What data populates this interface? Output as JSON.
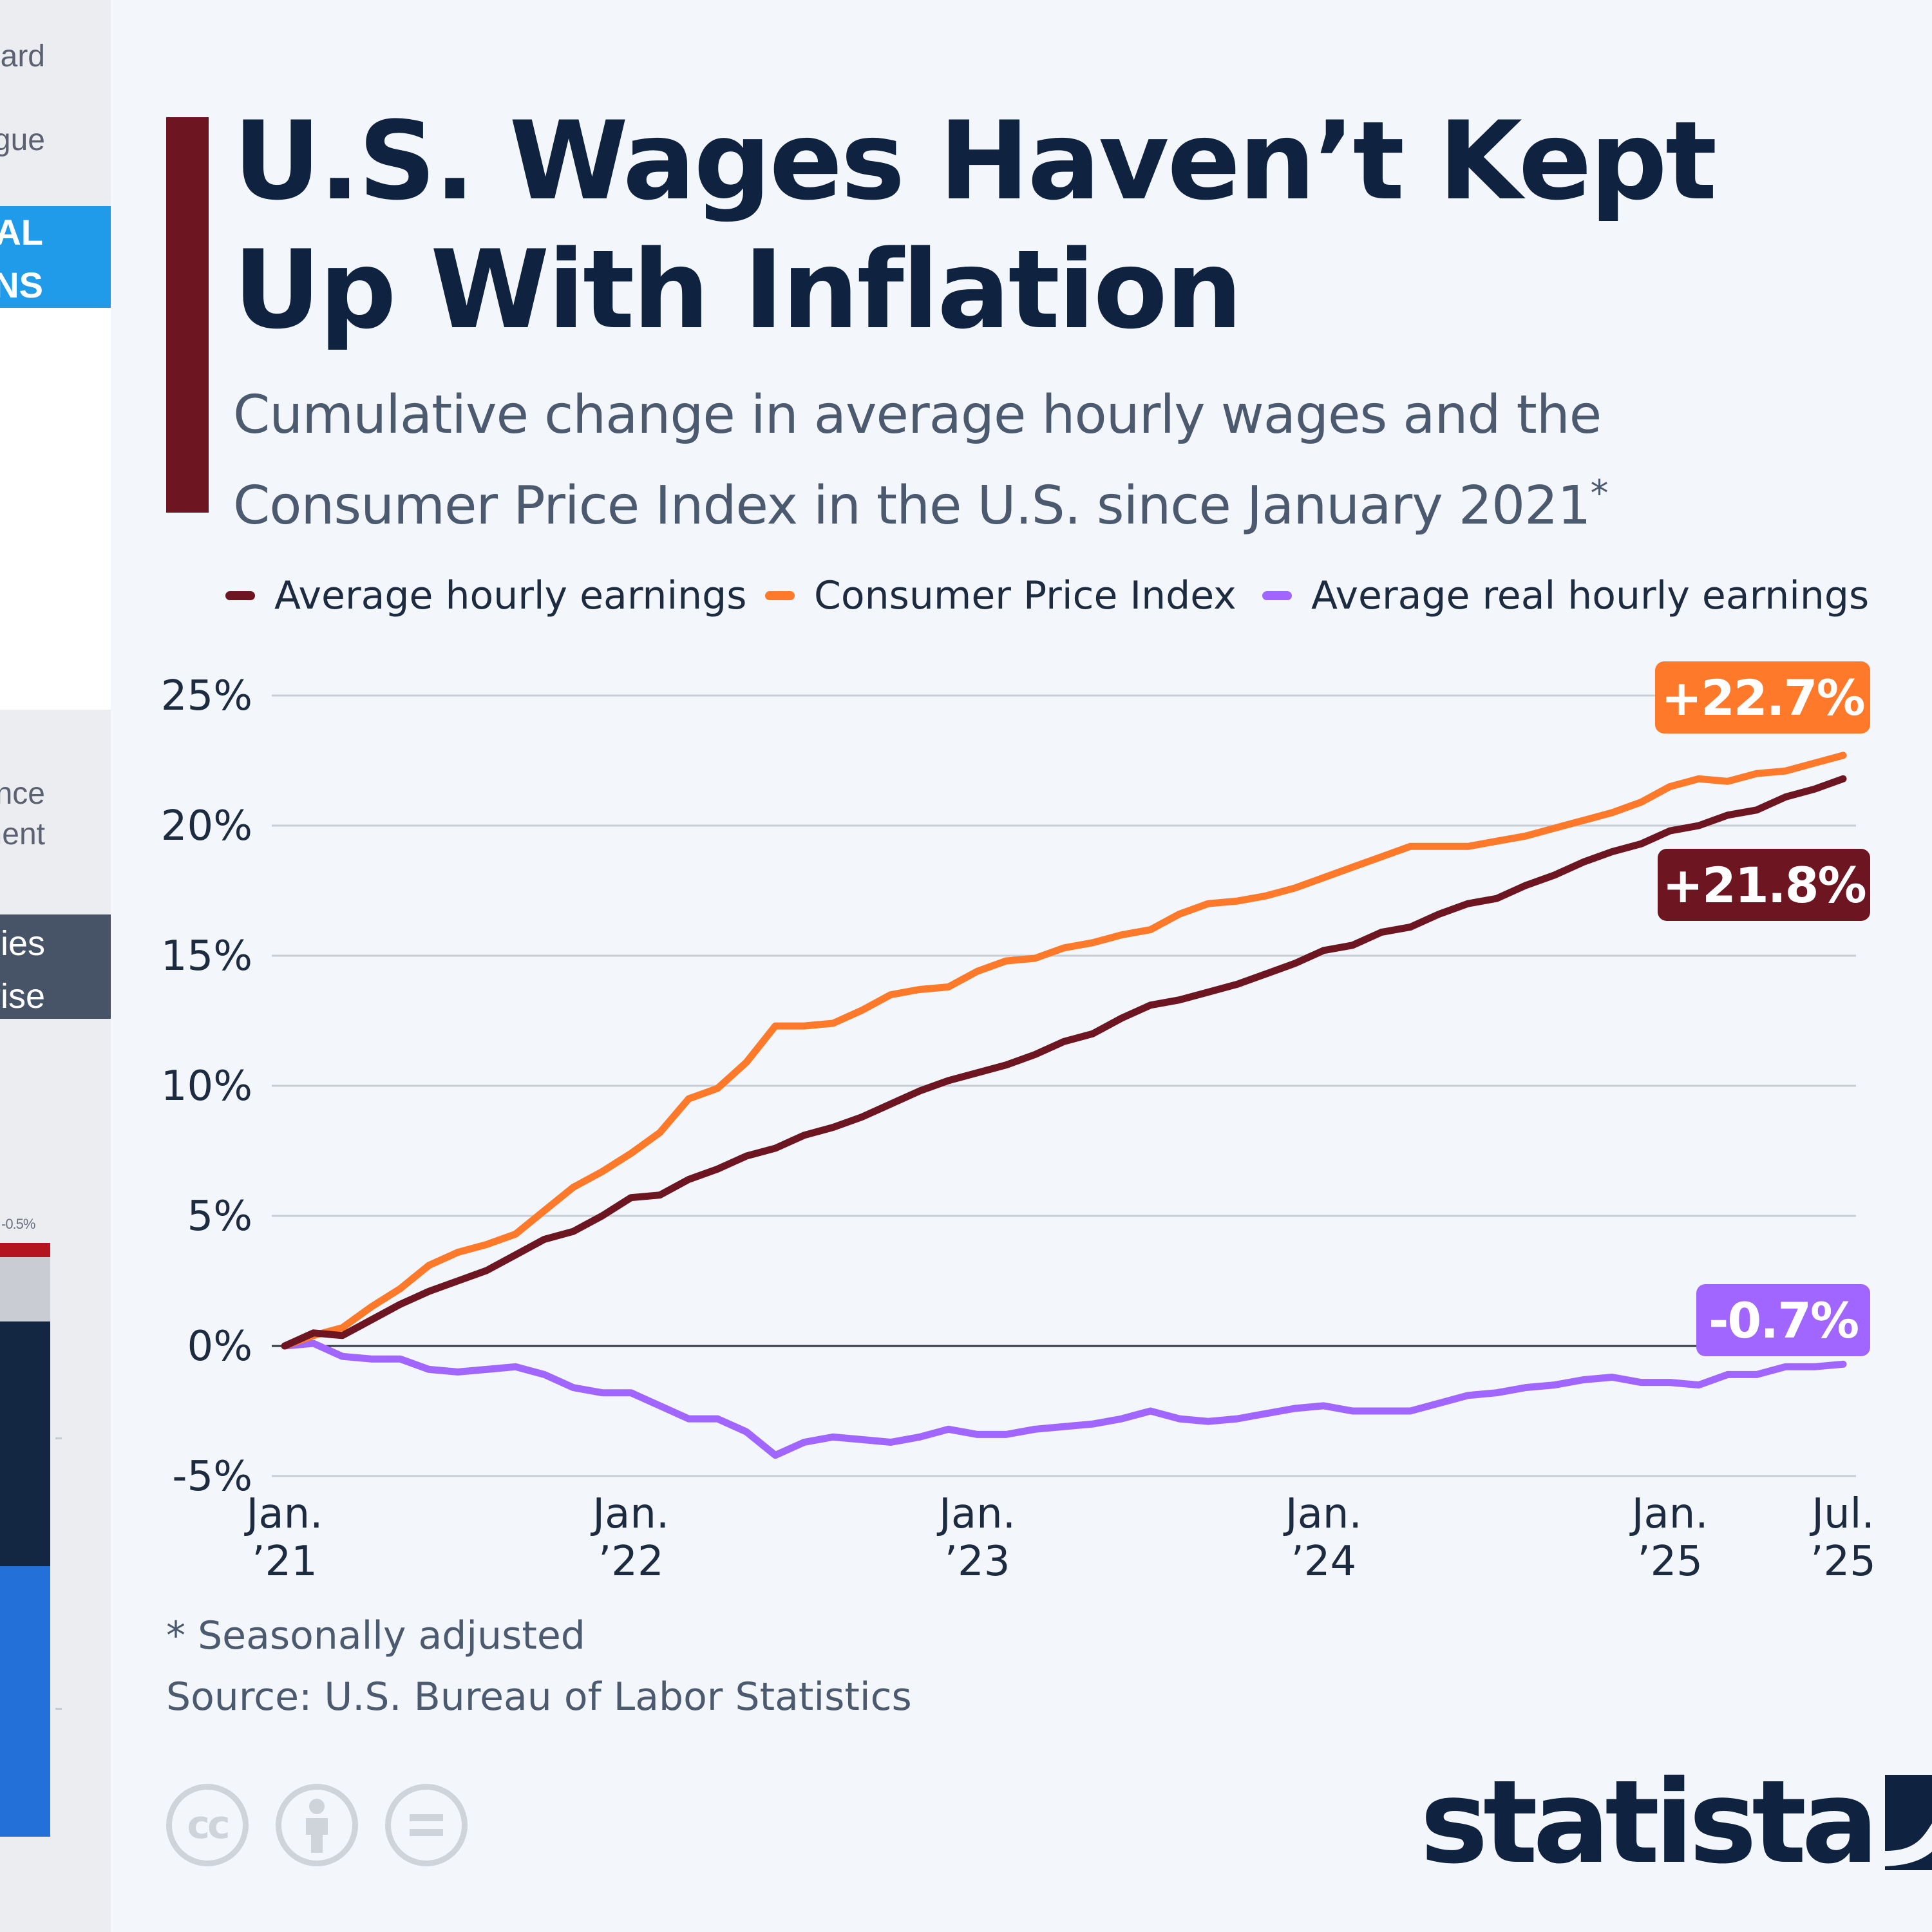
{
  "left_strip": {
    "items": [
      {
        "text": "ard",
        "top": 60
      },
      {
        "text": "ogue",
        "top": 190
      }
    ],
    "blue_box_lines": [
      "IAL",
      "DNS"
    ],
    "compliance_lines": [
      "pliance",
      "pment"
    ],
    "slate_box_lines": [
      "ies",
      "prise"
    ],
    "mini_label": "-0.5%"
  },
  "header": {
    "title": "U.S. Wages Haven’t Kept Up With Inflation",
    "subtitle": "Cumulative change in average hourly wages and the Consumer Price Index in the U.S. since January 2021",
    "subtitle_mark": "*"
  },
  "colors": {
    "earnings": "#6d1520",
    "cpi": "#fe7a2a",
    "real": "#a066ff",
    "gridline": "#c8ced6",
    "zeroline": "#30363f"
  },
  "chart_data": {
    "type": "line",
    "title": "U.S. Wages Haven’t Kept Up With Inflation",
    "xlabel": "",
    "ylabel": "",
    "ylim": [
      -5,
      25
    ],
    "y_ticks": [
      "25%",
      "20%",
      "15%",
      "10%",
      "5%",
      "0%",
      "-5%"
    ],
    "y_tick_values": [
      25,
      20,
      15,
      10,
      5,
      0,
      -5
    ],
    "x_ticks": [
      {
        "month_index": 0,
        "line1": "Jan.",
        "line2": "’21"
      },
      {
        "month_index": 12,
        "line1": "Jan.",
        "line2": "’22"
      },
      {
        "month_index": 24,
        "line1": "Jan.",
        "line2": "’23"
      },
      {
        "month_index": 36,
        "line1": "Jan.",
        "line2": "’24"
      },
      {
        "month_index": 48,
        "line1": "Jan.",
        "line2": "’25"
      },
      {
        "month_index": 54,
        "line1": "Jul.",
        "line2": "’25"
      }
    ],
    "x_range": [
      "Jan. 2021",
      "Jul. 2025"
    ],
    "grid": true,
    "legend_position": "top",
    "series": [
      {
        "name": "Average hourly earnings",
        "color_key": "earnings",
        "end_label": "+21.8%",
        "values": [
          0,
          0.5,
          0.4,
          1.0,
          1.6,
          2.1,
          2.5,
          2.9,
          3.5,
          4.1,
          4.4,
          5.0,
          5.7,
          5.8,
          6.4,
          6.8,
          7.3,
          7.6,
          8.1,
          8.4,
          8.8,
          9.3,
          9.8,
          10.2,
          10.5,
          10.8,
          11.2,
          11.7,
          12.0,
          12.6,
          13.1,
          13.3,
          13.6,
          13.9,
          14.3,
          14.7,
          15.2,
          15.4,
          15.9,
          16.1,
          16.6,
          17.0,
          17.2,
          17.7,
          18.1,
          18.6,
          19.0,
          19.3,
          19.8,
          20.0,
          20.4,
          20.6,
          21.1,
          21.4,
          21.8
        ]
      },
      {
        "name": "Consumer Price Index",
        "color_key": "cpi",
        "end_label": "+22.7%",
        "values": [
          0,
          0.4,
          0.7,
          1.5,
          2.2,
          3.1,
          3.6,
          3.9,
          4.3,
          5.2,
          6.1,
          6.7,
          7.4,
          8.2,
          9.5,
          9.9,
          10.9,
          12.3,
          12.3,
          12.4,
          12.9,
          13.5,
          13.7,
          13.8,
          14.4,
          14.8,
          14.9,
          15.3,
          15.5,
          15.8,
          16.0,
          16.6,
          17.0,
          17.1,
          17.3,
          17.6,
          18.0,
          18.4,
          18.8,
          19.2,
          19.2,
          19.2,
          19.4,
          19.6,
          19.9,
          20.2,
          20.5,
          20.9,
          21.5,
          21.8,
          21.7,
          22.0,
          22.1,
          22.4,
          22.7
        ]
      },
      {
        "name": "Average real hourly earnings",
        "color_key": "real",
        "end_label": "-0.7%",
        "values": [
          0,
          0.1,
          -0.4,
          -0.5,
          -0.5,
          -0.9,
          -1.0,
          -0.9,
          -0.8,
          -1.1,
          -1.6,
          -1.8,
          -1.8,
          -2.3,
          -2.8,
          -2.8,
          -3.3,
          -4.2,
          -3.7,
          -3.5,
          -3.6,
          -3.7,
          -3.5,
          -3.2,
          -3.4,
          -3.4,
          -3.2,
          -3.1,
          -3.0,
          -2.8,
          -2.5,
          -2.8,
          -2.9,
          -2.8,
          -2.6,
          -2.4,
          -2.3,
          -2.5,
          -2.5,
          -2.5,
          -2.2,
          -1.9,
          -1.8,
          -1.6,
          -1.5,
          -1.3,
          -1.2,
          -1.4,
          -1.4,
          -1.5,
          -1.1,
          -1.1,
          -0.8,
          -0.8,
          -0.7
        ]
      }
    ]
  },
  "footnote": "* Seasonally adjusted",
  "source": "Source: U.S. Bureau of Labor Statistics",
  "license_icons": [
    {
      "name": "cc-icon",
      "glyph": "cc"
    },
    {
      "name": "attribution-icon",
      "glyph": "person"
    },
    {
      "name": "no-derivatives-icon",
      "glyph": "="
    }
  ],
  "brand": {
    "wordmark": "statista"
  }
}
